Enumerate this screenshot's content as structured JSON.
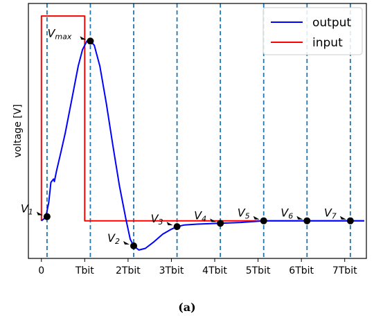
{
  "caption": "(a)",
  "chart_data": {
    "type": "line",
    "ylabel": "voltage [V]",
    "xlabel": "",
    "xlim": [
      -0.3,
      7.5
    ],
    "ylim": [
      -0.45,
      2.6
    ],
    "x_ticks": [
      0,
      1,
      2,
      3,
      4,
      5,
      6,
      7
    ],
    "x_tick_labels": [
      "0",
      "Tbit",
      "2Tbit",
      "3Tbit",
      "4Tbit",
      "5Tbit",
      "6Tbit",
      "7Tbit"
    ],
    "y_ticks_shown": false,
    "vlines": [
      0.13,
      1.13,
      2.13,
      3.13,
      4.13,
      5.13,
      6.13,
      7.13
    ],
    "legend": {
      "position": "top-right",
      "entries": [
        "output",
        "input"
      ]
    },
    "colors": {
      "output": "#0000ff",
      "input": "#ff0000",
      "vline": "#1f77b4",
      "marker": "#000000"
    },
    "series": [
      {
        "name": "output",
        "points": [
          [
            0,
            0
          ],
          [
            0.1,
            0.04
          ],
          [
            0.17,
            0.22
          ],
          [
            0.22,
            0.46
          ],
          [
            0.28,
            0.5
          ],
          [
            0.3,
            0.47
          ],
          [
            0.35,
            0.6
          ],
          [
            0.45,
            0.82
          ],
          [
            0.55,
            1.05
          ],
          [
            0.7,
            1.45
          ],
          [
            0.85,
            1.85
          ],
          [
            0.95,
            2.05
          ],
          [
            1.05,
            2.15
          ],
          [
            1.13,
            2.15
          ],
          [
            1.22,
            2.1
          ],
          [
            1.35,
            1.85
          ],
          [
            1.5,
            1.4
          ],
          [
            1.65,
            0.9
          ],
          [
            1.8,
            0.42
          ],
          [
            1.95,
            0.02
          ],
          [
            2.05,
            -0.22
          ],
          [
            2.13,
            -0.3
          ],
          [
            2.25,
            -0.35
          ],
          [
            2.4,
            -0.33
          ],
          [
            2.6,
            -0.25
          ],
          [
            2.8,
            -0.16
          ],
          [
            3.0,
            -0.1
          ],
          [
            3.13,
            -0.07
          ],
          [
            3.3,
            -0.05
          ],
          [
            3.6,
            -0.04
          ],
          [
            4.13,
            -0.03
          ],
          [
            4.6,
            -0.02
          ],
          [
            5.13,
            0.0
          ],
          [
            5.6,
            0.0
          ],
          [
            6.13,
            0.0
          ],
          [
            6.6,
            0.0
          ],
          [
            7.13,
            0.0
          ],
          [
            7.45,
            0.0
          ]
        ]
      },
      {
        "name": "input",
        "points": [
          [
            0,
            0
          ],
          [
            0,
            2.45
          ],
          [
            1.0,
            2.45
          ],
          [
            1.0,
            0
          ],
          [
            7.45,
            0
          ]
        ]
      }
    ],
    "markers": [
      {
        "label": "V_1",
        "x": 0.13,
        "y": 0.05
      },
      {
        "label": "V_max",
        "x": 1.13,
        "y": 2.15
      },
      {
        "label": "V_2",
        "x": 2.13,
        "y": -0.3
      },
      {
        "label": "V_3",
        "x": 3.13,
        "y": -0.07
      },
      {
        "label": "V_4",
        "x": 4.13,
        "y": -0.03
      },
      {
        "label": "V_5",
        "x": 5.13,
        "y": 0.0
      },
      {
        "label": "V_6",
        "x": 6.13,
        "y": 0.0
      },
      {
        "label": "V_7",
        "x": 7.13,
        "y": 0.0
      }
    ],
    "annotations": [
      {
        "base": "V",
        "sub": "1"
      },
      {
        "base": "V",
        "sub": "max"
      },
      {
        "base": "V",
        "sub": "2"
      },
      {
        "base": "V",
        "sub": "3"
      },
      {
        "base": "V",
        "sub": "4"
      },
      {
        "base": "V",
        "sub": "5"
      },
      {
        "base": "V",
        "sub": "6"
      },
      {
        "base": "V",
        "sub": "7"
      }
    ]
  }
}
